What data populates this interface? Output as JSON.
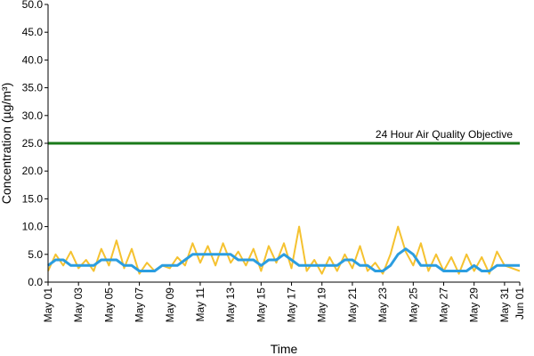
{
  "chart_data": {
    "type": "line",
    "title": "",
    "xlabel": "Time",
    "ylabel": "Concentration (µg/m³)",
    "ylim": [
      0,
      50
    ],
    "y_ticks": [
      "0.0",
      "5.0",
      "10.0",
      "15.0",
      "20.0",
      "25.0",
      "30.0",
      "35.0",
      "40.0",
      "45.0",
      "50.0"
    ],
    "x_range": [
      "2021-05-01",
      "2021-06-01"
    ],
    "x_ticks": [
      {
        "date": "2021-05-01",
        "label": "May 01"
      },
      {
        "date": "2021-05-03",
        "label": "May 03"
      },
      {
        "date": "2021-05-05",
        "label": "May 05"
      },
      {
        "date": "2021-05-07",
        "label": "May 07"
      },
      {
        "date": "2021-05-09",
        "label": "May 09"
      },
      {
        "date": "2021-05-11",
        "label": "May 11"
      },
      {
        "date": "2021-05-13",
        "label": "May 13"
      },
      {
        "date": "2021-05-15",
        "label": "May 15"
      },
      {
        "date": "2021-05-17",
        "label": "May 17"
      },
      {
        "date": "2021-05-19",
        "label": "May 19"
      },
      {
        "date": "2021-05-21",
        "label": "May 21"
      },
      {
        "date": "2021-05-23",
        "label": "May 23"
      },
      {
        "date": "2021-05-25",
        "label": "May 25"
      },
      {
        "date": "2021-05-27",
        "label": "May 27"
      },
      {
        "date": "2021-05-29",
        "label": "May 29"
      },
      {
        "date": "2021-05-31",
        "label": "May 31"
      },
      {
        "date": "2021-06-01",
        "label": "Jun 01"
      }
    ],
    "grid": false,
    "series": [
      {
        "color": "#f5c230",
        "x": [
          "2021-05-01",
          "2021-05-01 12:00",
          "2021-05-02",
          "2021-05-02 12:00",
          "2021-05-03",
          "2021-05-03 12:00",
          "2021-05-04",
          "2021-05-04 12:00",
          "2021-05-05",
          "2021-05-05 12:00",
          "2021-05-06",
          "2021-05-06 12:00",
          "2021-05-07",
          "2021-05-07 12:00",
          "2021-05-08",
          "2021-05-08 12:00",
          "2021-05-09",
          "2021-05-09 12:00",
          "2021-05-10",
          "2021-05-10 12:00",
          "2021-05-11",
          "2021-05-11 12:00",
          "2021-05-12",
          "2021-05-12 12:00",
          "2021-05-13",
          "2021-05-13 12:00",
          "2021-05-14",
          "2021-05-14 12:00",
          "2021-05-15",
          "2021-05-15 12:00",
          "2021-05-16",
          "2021-05-16 12:00",
          "2021-05-17",
          "2021-05-17 12:00",
          "2021-05-18",
          "2021-05-18 12:00",
          "2021-05-19",
          "2021-05-19 12:00",
          "2021-05-20",
          "2021-05-20 12:00",
          "2021-05-21",
          "2021-05-21 12:00",
          "2021-05-22",
          "2021-05-22 12:00",
          "2021-05-23",
          "2021-05-23 12:00",
          "2021-05-24",
          "2021-05-24 12:00",
          "2021-05-25",
          "2021-05-25 12:00",
          "2021-05-26",
          "2021-05-26 12:00",
          "2021-05-27",
          "2021-05-27 12:00",
          "2021-05-28",
          "2021-05-28 12:00",
          "2021-05-29",
          "2021-05-29 12:00",
          "2021-05-30",
          "2021-05-30 12:00",
          "2021-05-31",
          "2021-05-31 12:00",
          "2021-06-01"
        ],
        "values": [
          2.0,
          5.0,
          3.0,
          5.5,
          2.5,
          4.0,
          2.0,
          6.0,
          3.0,
          7.5,
          2.5,
          6.0,
          1.5,
          3.5,
          2.0,
          3.0,
          2.5,
          4.5,
          3.0,
          7.0,
          3.5,
          6.5,
          3.0,
          7.0,
          3.5,
          5.5,
          3.0,
          6.0,
          2.0,
          6.5,
          3.5,
          7.0,
          2.5,
          10.0,
          2.0,
          4.0,
          1.5,
          4.5,
          2.0,
          5.0,
          2.5,
          6.5,
          2.0,
          3.5,
          1.5,
          5.0,
          10.0,
          5.5,
          3.0,
          7.0,
          2.0,
          5.0,
          2.0,
          4.5,
          1.5,
          5.0,
          2.0,
          4.5,
          1.5,
          5.5,
          3.0,
          2.5,
          2.0
        ]
      },
      {
        "color": "#2b9de0",
        "x": [
          "2021-05-01",
          "2021-05-01 12:00",
          "2021-05-02",
          "2021-05-02 12:00",
          "2021-05-03",
          "2021-05-03 12:00",
          "2021-05-04",
          "2021-05-04 12:00",
          "2021-05-05",
          "2021-05-05 12:00",
          "2021-05-06",
          "2021-05-06 12:00",
          "2021-05-07",
          "2021-05-07 12:00",
          "2021-05-08",
          "2021-05-08 12:00",
          "2021-05-09",
          "2021-05-09 12:00",
          "2021-05-10",
          "2021-05-10 12:00",
          "2021-05-11",
          "2021-05-11 12:00",
          "2021-05-12",
          "2021-05-12 12:00",
          "2021-05-13",
          "2021-05-13 12:00",
          "2021-05-14",
          "2021-05-14 12:00",
          "2021-05-15",
          "2021-05-15 12:00",
          "2021-05-16",
          "2021-05-16 12:00",
          "2021-05-17",
          "2021-05-17 12:00",
          "2021-05-18",
          "2021-05-18 12:00",
          "2021-05-19",
          "2021-05-19 12:00",
          "2021-05-20",
          "2021-05-20 12:00",
          "2021-05-21",
          "2021-05-21 12:00",
          "2021-05-22",
          "2021-05-22 12:00",
          "2021-05-23",
          "2021-05-23 12:00",
          "2021-05-24",
          "2021-05-24 12:00",
          "2021-05-25",
          "2021-05-25 12:00",
          "2021-05-26",
          "2021-05-26 12:00",
          "2021-05-27",
          "2021-05-27 12:00",
          "2021-05-28",
          "2021-05-28 12:00",
          "2021-05-29",
          "2021-05-29 12:00",
          "2021-05-30",
          "2021-05-30 12:00",
          "2021-05-31",
          "2021-05-31 12:00",
          "2021-06-01"
        ],
        "values": [
          3.0,
          4.0,
          4.0,
          3.0,
          3.0,
          3.0,
          3.0,
          4.0,
          4.0,
          4.0,
          3.0,
          3.0,
          2.0,
          2.0,
          2.0,
          3.0,
          3.0,
          3.0,
          4.0,
          5.0,
          5.0,
          5.0,
          5.0,
          5.0,
          5.0,
          4.0,
          4.0,
          4.0,
          3.0,
          4.0,
          4.0,
          5.0,
          4.0,
          3.0,
          3.0,
          3.0,
          3.0,
          3.0,
          3.0,
          4.0,
          4.0,
          3.0,
          3.0,
          2.0,
          2.0,
          3.0,
          5.0,
          6.0,
          5.0,
          3.0,
          3.0,
          3.0,
          2.0,
          2.0,
          2.0,
          2.0,
          3.0,
          2.0,
          2.0,
          3.0,
          3.0,
          3.0,
          3.0
        ]
      }
    ],
    "reference_lines": [
      {
        "y": 25.0,
        "label": "24 Hour Air Quality Objective",
        "color": "#1a7a1a"
      }
    ]
  }
}
